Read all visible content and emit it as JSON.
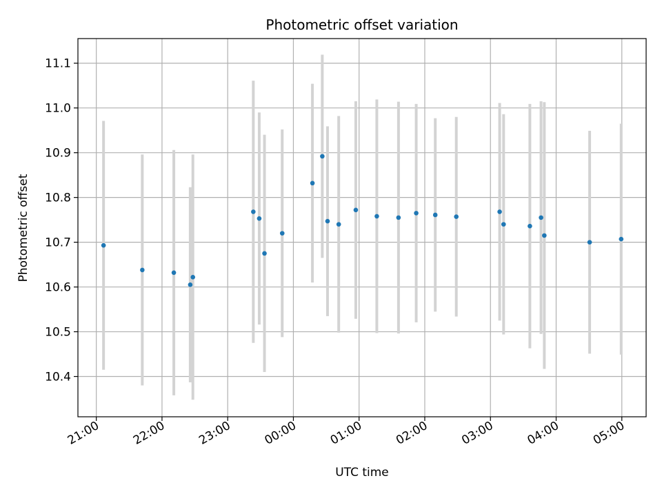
{
  "chart_data": {
    "type": "scatter",
    "title": "Photometric offset variation",
    "xlabel": "UTC time",
    "ylabel": "Photometric offset",
    "grid": true,
    "xlim_hours": [
      -0.28,
      8.37
    ],
    "ylim": [
      10.31,
      11.155
    ],
    "x_unit": "hours since 21:00",
    "xticks": [
      {
        "value": 0,
        "label": "21:00"
      },
      {
        "value": 1,
        "label": "22:00"
      },
      {
        "value": 2,
        "label": "23:00"
      },
      {
        "value": 3,
        "label": "00:00"
      },
      {
        "value": 4,
        "label": "01:00"
      },
      {
        "value": 5,
        "label": "02:00"
      },
      {
        "value": 6,
        "label": "03:00"
      },
      {
        "value": 7,
        "label": "04:00"
      },
      {
        "value": 8,
        "label": "05:00"
      }
    ],
    "yticks": [
      {
        "value": 10.4,
        "label": "10.4"
      },
      {
        "value": 10.5,
        "label": "10.5"
      },
      {
        "value": 10.6,
        "label": "10.6"
      },
      {
        "value": 10.7,
        "label": "10.7"
      },
      {
        "value": 10.8,
        "label": "10.8"
      },
      {
        "value": 10.9,
        "label": "10.9"
      },
      {
        "value": 11.0,
        "label": "11.0"
      },
      {
        "value": 11.1,
        "label": "11.1"
      }
    ],
    "series": [
      {
        "name": "Photometric offset",
        "points": [
          {
            "x": 0.11,
            "y": 10.693,
            "err": 0.278
          },
          {
            "x": 0.7,
            "y": 10.638,
            "err": 0.258
          },
          {
            "x": 1.18,
            "y": 10.632,
            "err": 0.274
          },
          {
            "x": 1.43,
            "y": 10.605,
            "err": 0.218
          },
          {
            "x": 1.47,
            "y": 10.622,
            "err": 0.274
          },
          {
            "x": 2.39,
            "y": 10.768,
            "err": 0.293
          },
          {
            "x": 2.48,
            "y": 10.753,
            "err": 0.237
          },
          {
            "x": 2.56,
            "y": 10.675,
            "err": 0.265
          },
          {
            "x": 2.83,
            "y": 10.72,
            "err": 0.232
          },
          {
            "x": 3.29,
            "y": 10.832,
            "err": 0.222
          },
          {
            "x": 3.44,
            "y": 10.892,
            "err": 0.227
          },
          {
            "x": 3.52,
            "y": 10.747,
            "err": 0.212
          },
          {
            "x": 3.69,
            "y": 10.74,
            "err": 0.242
          },
          {
            "x": 3.95,
            "y": 10.772,
            "err": 0.243
          },
          {
            "x": 4.27,
            "y": 10.758,
            "err": 0.261
          },
          {
            "x": 4.6,
            "y": 10.755,
            "err": 0.259
          },
          {
            "x": 4.87,
            "y": 10.765,
            "err": 0.244
          },
          {
            "x": 5.16,
            "y": 10.761,
            "err": 0.216
          },
          {
            "x": 5.48,
            "y": 10.757,
            "err": 0.223
          },
          {
            "x": 6.14,
            "y": 10.768,
            "err": 0.243
          },
          {
            "x": 6.2,
            "y": 10.74,
            "err": 0.246
          },
          {
            "x": 6.6,
            "y": 10.736,
            "err": 0.273
          },
          {
            "x": 6.77,
            "y": 10.755,
            "err": 0.26
          },
          {
            "x": 6.82,
            "y": 10.715,
            "err": 0.298
          },
          {
            "x": 7.51,
            "y": 10.7,
            "err": 0.249
          },
          {
            "x": 7.99,
            "y": 10.707,
            "err": 0.258
          }
        ]
      }
    ]
  }
}
